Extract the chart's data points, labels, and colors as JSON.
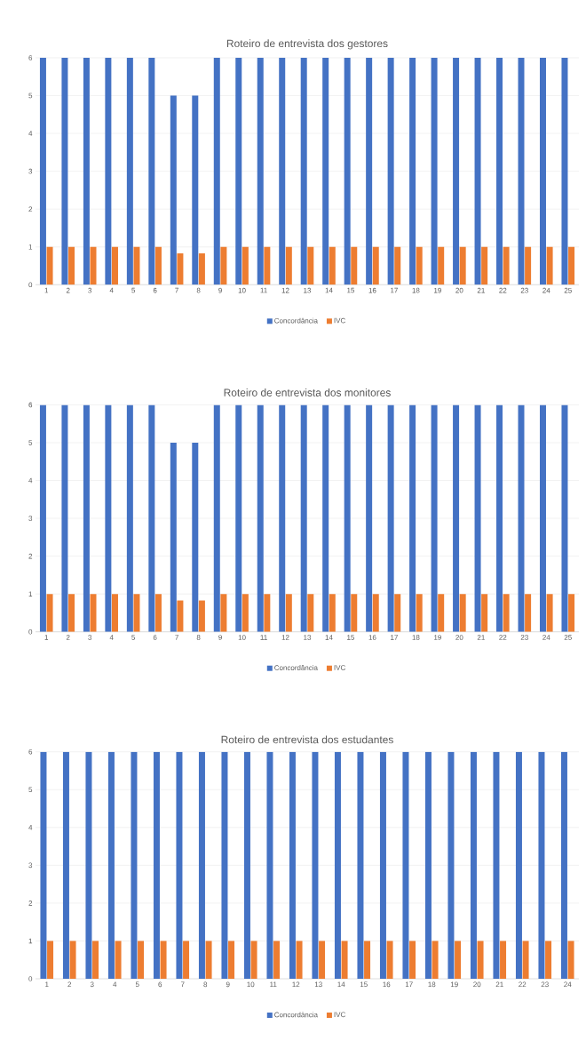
{
  "chart_data": [
    {
      "type": "bar",
      "title": "Roteiro de entrevista dos gestores",
      "categories": [
        "1",
        "2",
        "3",
        "4",
        "5",
        "6",
        "7",
        "8",
        "9",
        "10",
        "11",
        "12",
        "13",
        "14",
        "15",
        "16",
        "17",
        "18",
        "19",
        "20",
        "21",
        "22",
        "23",
        "24",
        "25"
      ],
      "series": [
        {
          "name": "Concordância",
          "color": "#4472c4",
          "values": [
            6,
            6,
            6,
            6,
            6,
            6,
            5,
            5,
            6,
            6,
            6,
            6,
            6,
            6,
            6,
            6,
            6,
            6,
            6,
            6,
            6,
            6,
            6,
            6,
            6
          ]
        },
        {
          "name": "IVC",
          "color": "#ed7d31",
          "values": [
            1,
            1,
            1,
            1,
            1,
            1,
            0.83,
            0.83,
            1,
            1,
            1,
            1,
            1,
            1,
            1,
            1,
            1,
            1,
            1,
            1,
            1,
            1,
            1,
            1,
            1
          ]
        }
      ],
      "ylim": [
        0,
        6
      ],
      "yticks": [
        0,
        1,
        2,
        3,
        4,
        5,
        6
      ],
      "grid": "y",
      "legend": "bottom"
    },
    {
      "type": "bar",
      "title": "Roteiro de entrevista dos monitores",
      "categories": [
        "1",
        "2",
        "3",
        "4",
        "5",
        "6",
        "7",
        "8",
        "9",
        "10",
        "11",
        "12",
        "13",
        "14",
        "15",
        "16",
        "17",
        "18",
        "19",
        "20",
        "21",
        "22",
        "23",
        "24",
        "25"
      ],
      "series": [
        {
          "name": "Concordância",
          "color": "#4472c4",
          "values": [
            6,
            6,
            6,
            6,
            6,
            6,
            5,
            5,
            6,
            6,
            6,
            6,
            6,
            6,
            6,
            6,
            6,
            6,
            6,
            6,
            6,
            6,
            6,
            6,
            6
          ]
        },
        {
          "name": "IVC",
          "color": "#ed7d31",
          "values": [
            1,
            1,
            1,
            1,
            1,
            1,
            0.83,
            0.83,
            1,
            1,
            1,
            1,
            1,
            1,
            1,
            1,
            1,
            1,
            1,
            1,
            1,
            1,
            1,
            1,
            1
          ]
        }
      ],
      "ylim": [
        0,
        6
      ],
      "yticks": [
        0,
        1,
        2,
        3,
        4,
        5,
        6
      ],
      "grid": "y",
      "legend": "bottom"
    },
    {
      "type": "bar",
      "title": "Roteiro de entrevista dos estudantes",
      "categories": [
        "1",
        "2",
        "3",
        "4",
        "5",
        "6",
        "7",
        "8",
        "9",
        "10",
        "11",
        "12",
        "13",
        "14",
        "15",
        "16",
        "17",
        "18",
        "19",
        "20",
        "21",
        "22",
        "23",
        "24"
      ],
      "series": [
        {
          "name": "Concordância",
          "color": "#4472c4",
          "values": [
            6,
            6,
            6,
            6,
            6,
            6,
            6,
            6,
            6,
            6,
            6,
            6,
            6,
            6,
            6,
            6,
            6,
            6,
            6,
            6,
            6,
            6,
            6,
            6
          ]
        },
        {
          "name": "IVC",
          "color": "#ed7d31",
          "values": [
            1,
            1,
            1,
            1,
            1,
            1,
            1,
            1,
            1,
            1,
            1,
            1,
            1,
            1,
            1,
            1,
            1,
            1,
            1,
            1,
            1,
            1,
            1,
            1
          ]
        }
      ],
      "ylim": [
        0,
        6
      ],
      "yticks": [
        0,
        1,
        2,
        3,
        4,
        5,
        6
      ],
      "grid": "y",
      "legend": "bottom"
    }
  ]
}
